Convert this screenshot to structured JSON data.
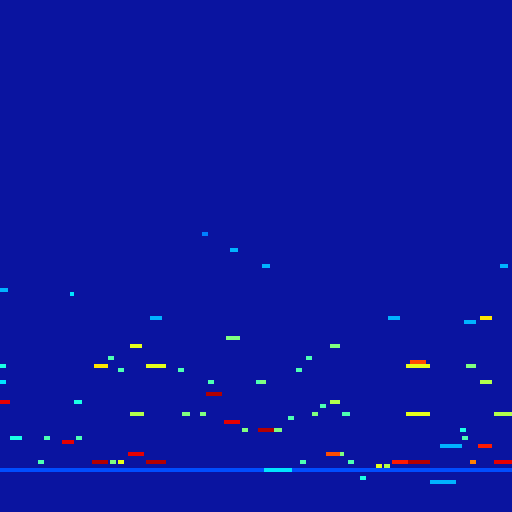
{
  "chart_data": {
    "type": "heatmap",
    "xlim": [
      0,
      512
    ],
    "ylim": [
      0,
      512
    ],
    "zlim": [
      0,
      1
    ],
    "tick_labels": false,
    "grid": false,
    "segments": [
      [
        0,
        8,
        111,
        0.9
      ],
      [
        207,
        220,
        119,
        0.95
      ],
      [
        62,
        73,
        71,
        0.9
      ],
      [
        93,
        107,
        50,
        0.95
      ],
      [
        128,
        142,
        56,
        0.9
      ],
      [
        146,
        164,
        50,
        0.95
      ],
      [
        225,
        238,
        88,
        0.9
      ],
      [
        259,
        273,
        83,
        0.95
      ],
      [
        326,
        338,
        56,
        0.8
      ],
      [
        393,
        408,
        50,
        0.85
      ],
      [
        408,
        428,
        50,
        0.95
      ],
      [
        479,
        490,
        66,
        0.85
      ],
      [
        495,
        510,
        50,
        0.9
      ],
      [
        470,
        474,
        50,
        0.75
      ],
      [
        95,
        107,
        146,
        0.65
      ],
      [
        146,
        164,
        146,
        0.6
      ],
      [
        130,
        141,
        164,
        0.6
      ],
      [
        227,
        238,
        174,
        0.5
      ],
      [
        330,
        338,
        164,
        0.5
      ],
      [
        407,
        428,
        146,
        0.6
      ],
      [
        410,
        425,
        148,
        0.8
      ],
      [
        407,
        428,
        99,
        0.6
      ],
      [
        130,
        142,
        99,
        0.55
      ],
      [
        480,
        490,
        195,
        0.65
      ],
      [
        480,
        490,
        130,
        0.55
      ],
      [
        495,
        510,
        99,
        0.55
      ],
      [
        466,
        474,
        146,
        0.5
      ],
      [
        330,
        338,
        111,
        0.55
      ],
      [
        10,
        20,
        74,
        0.4
      ],
      [
        0,
        5,
        146,
        0.4
      ],
      [
        75,
        80,
        111,
        0.4
      ],
      [
        183,
        188,
        99,
        0.5
      ],
      [
        200,
        205,
        99,
        0.5
      ],
      [
        275,
        280,
        82,
        0.5
      ],
      [
        243,
        247,
        83,
        0.5
      ],
      [
        288,
        292,
        92,
        0.45
      ],
      [
        312,
        316,
        99,
        0.5
      ],
      [
        343,
        348,
        99,
        0.45
      ],
      [
        321,
        325,
        104,
        0.45
      ],
      [
        260,
        265,
        128,
        0.5
      ],
      [
        208,
        212,
        128,
        0.45
      ],
      [
        118,
        122,
        50,
        0.6
      ],
      [
        111,
        115,
        50,
        0.5
      ],
      [
        376,
        380,
        45,
        0.6
      ],
      [
        384,
        388,
        45,
        0.55
      ],
      [
        338,
        342,
        57,
        0.5
      ],
      [
        348,
        352,
        50,
        0.45
      ],
      [
        300,
        305,
        50,
        0.45
      ],
      [
        360,
        365,
        35,
        0.4
      ],
      [
        44,
        48,
        74,
        0.45
      ],
      [
        76,
        80,
        74,
        0.45
      ],
      [
        38,
        42,
        50,
        0.45
      ],
      [
        418,
        422,
        96,
        0.5
      ],
      [
        108,
        112,
        152,
        0.45
      ],
      [
        119,
        123,
        140,
        0.45
      ],
      [
        179,
        183,
        140,
        0.45
      ],
      [
        257,
        261,
        128,
        0.45
      ],
      [
        296,
        300,
        140,
        0.45
      ],
      [
        307,
        311,
        152,
        0.45
      ],
      [
        70,
        73,
        217,
        0.35
      ],
      [
        262,
        268,
        247,
        0.3
      ],
      [
        230,
        236,
        261,
        0.3
      ],
      [
        500,
        506,
        247,
        0.3
      ],
      [
        203,
        207,
        278,
        0.25
      ],
      [
        150,
        160,
        194,
        0.3
      ],
      [
        388,
        398,
        194,
        0.3
      ],
      [
        465,
        475,
        189,
        0.3
      ],
      [
        0,
        6,
        220,
        0.3
      ],
      [
        462,
        466,
        74,
        0.45
      ],
      [
        460,
        464,
        80,
        0.4
      ],
      [
        0,
        512,
        41,
        0.2
      ],
      [
        430,
        455,
        29,
        0.3
      ],
      [
        265,
        290,
        41,
        0.35
      ],
      [
        440,
        460,
        66,
        0.3
      ],
      [
        0,
        4,
        130,
        0.35
      ]
    ]
  }
}
